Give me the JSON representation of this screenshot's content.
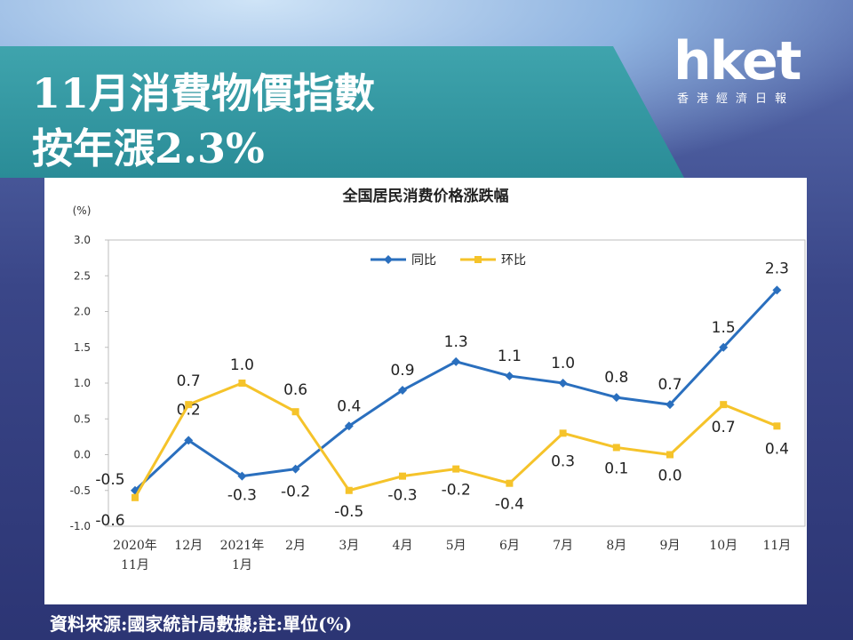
{
  "header": {
    "title_line1": "11月消費物價指數",
    "title_line2": "按年漲2.3%"
  },
  "logo": {
    "word": "hket",
    "subtitle": "香港經濟日報"
  },
  "source": "資料來源:國家統計局數據;註:單位(%)",
  "colors": {
    "yoy": "#2a6fbe",
    "mom": "#f5c32a",
    "banner": "#2a8c97",
    "background": "#3a4688"
  },
  "chart_data": {
    "type": "line",
    "title": "全国居民消费价格涨跌幅",
    "ylabel": "(%)",
    "ylim": [
      -1.0,
      3.0
    ],
    "yticks": [
      "3.0",
      "2.5",
      "2.0",
      "1.5",
      "1.0",
      "0.5",
      "0.0",
      "-0.5",
      "-1.0"
    ],
    "categories": [
      [
        "2020年",
        "11月"
      ],
      [
        "12月"
      ],
      [
        "2021年",
        "1月"
      ],
      [
        "2月"
      ],
      [
        "3月"
      ],
      [
        "4月"
      ],
      [
        "5月"
      ],
      [
        "6月"
      ],
      [
        "7月"
      ],
      [
        "8月"
      ],
      [
        "9月"
      ],
      [
        "10月"
      ],
      [
        "11月"
      ]
    ],
    "series": [
      {
        "name": "同比",
        "values": [
          -0.5,
          0.2,
          -0.3,
          -0.2,
          0.4,
          0.9,
          1.3,
          1.1,
          1.0,
          0.8,
          0.7,
          1.5,
          2.3
        ],
        "labels": [
          "-0.5",
          "0.2",
          "-0.3",
          "-0.2",
          "0.4",
          "0.9",
          "1.3",
          "1.1",
          "1.0",
          "0.8",
          "0.7",
          "1.5",
          "2.3"
        ]
      },
      {
        "name": "环比",
        "values": [
          -0.6,
          0.7,
          1.0,
          0.6,
          -0.5,
          -0.3,
          -0.2,
          -0.4,
          0.3,
          0.1,
          0.0,
          0.7,
          0.4
        ],
        "labels": [
          "-0.6",
          "0.7",
          "1.0",
          "0.6",
          "-0.5",
          "-0.3",
          "-0.2",
          "-0.4",
          "0.3",
          "0.1",
          "0.0",
          "0.7",
          "0.4"
        ]
      }
    ],
    "legend": "top-center",
    "grid": false
  }
}
